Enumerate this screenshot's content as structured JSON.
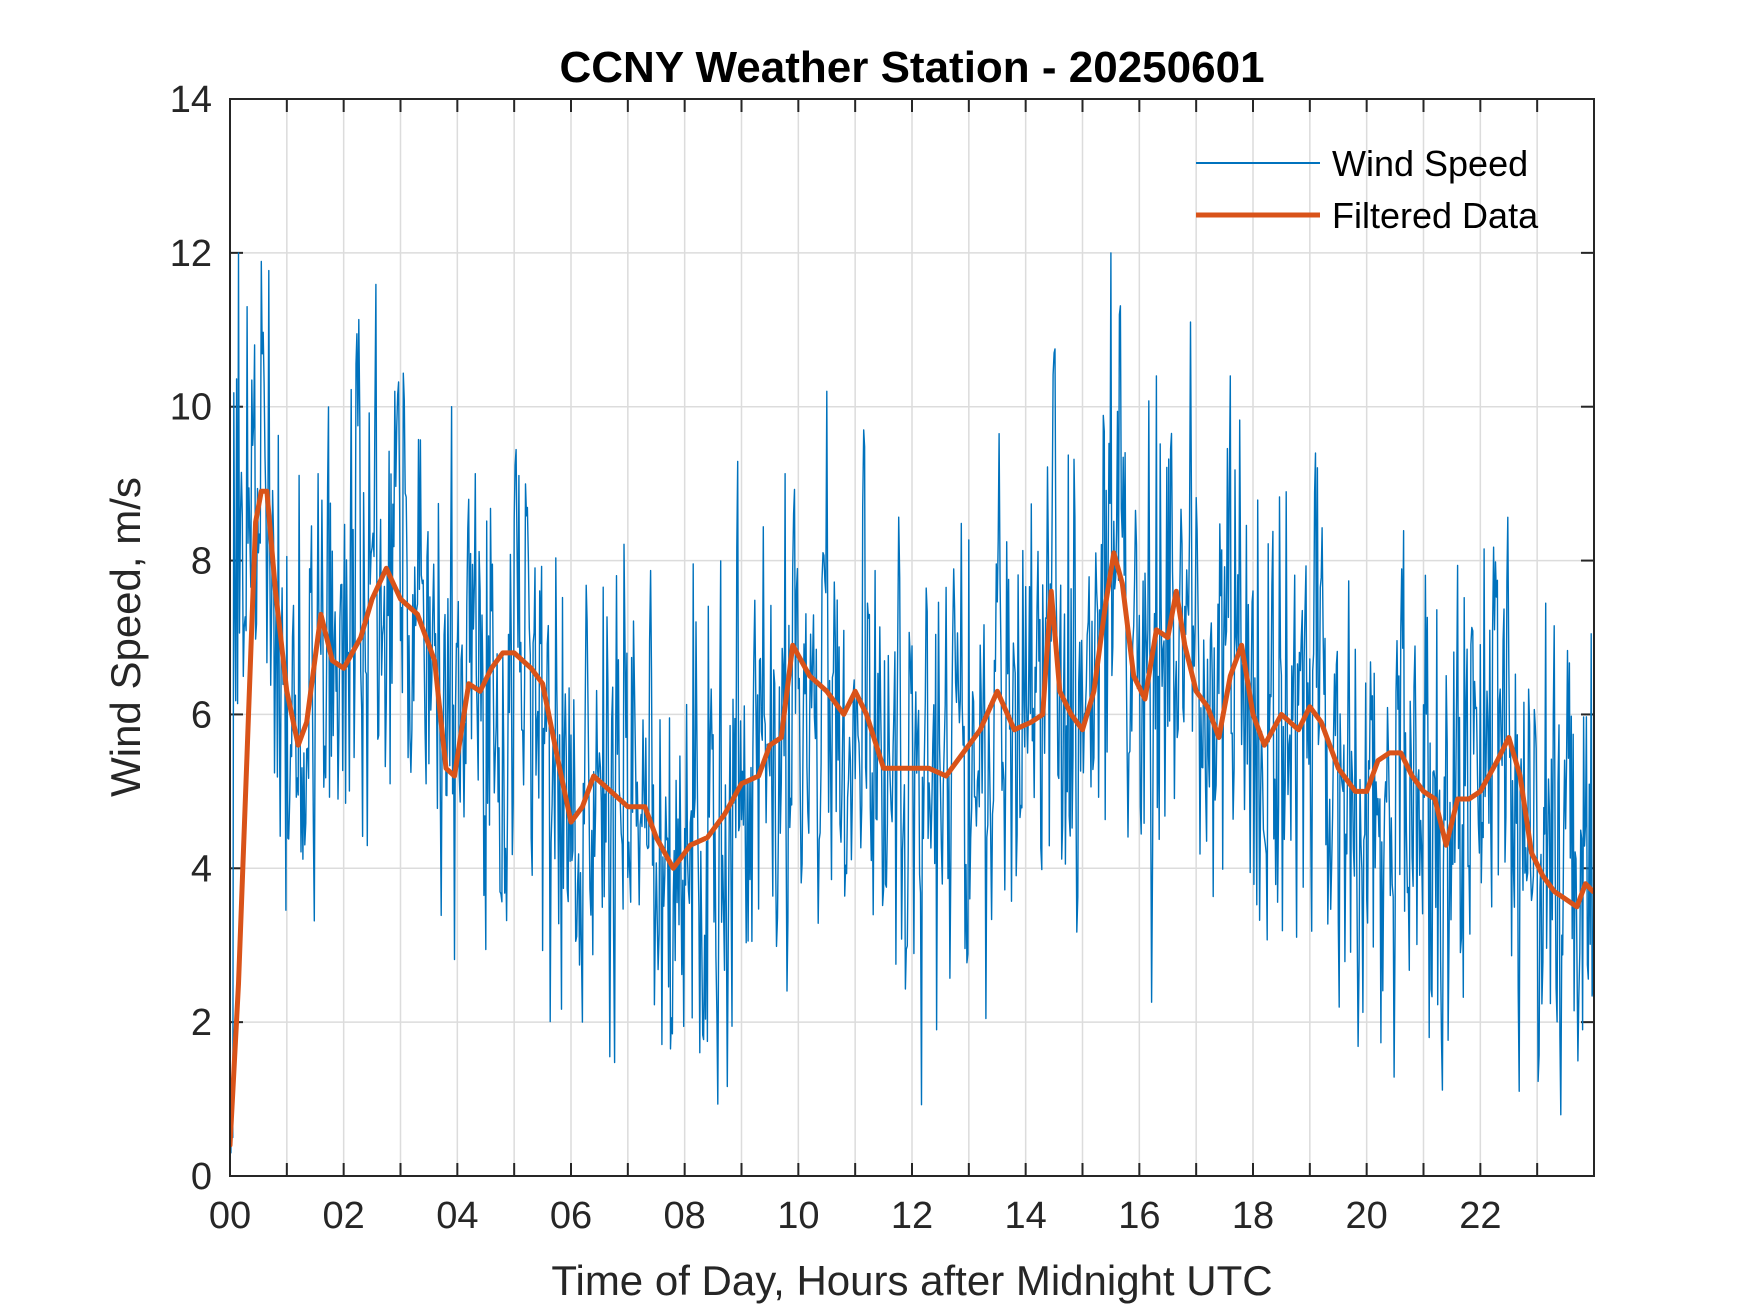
{
  "chart_data": {
    "type": "line",
    "title": "CCNY Weather Station - 20250601",
    "xlabel": "Time of Day, Hours after Midnight UTC",
    "ylabel": "Wind Speed, m/s",
    "xlim": [
      0,
      24
    ],
    "ylim": [
      0,
      14
    ],
    "x_ticks": [
      0,
      2,
      4,
      6,
      8,
      10,
      12,
      14,
      16,
      18,
      20,
      22
    ],
    "x_tick_labels": [
      "00",
      "02",
      "04",
      "06",
      "08",
      "10",
      "12",
      "14",
      "16",
      "18",
      "20",
      "22"
    ],
    "x_grid_step": 1,
    "y_ticks": [
      0,
      2,
      4,
      6,
      8,
      10,
      12,
      14
    ],
    "y_tick_labels": [
      "0",
      "2",
      "4",
      "6",
      "8",
      "10",
      "12",
      "14"
    ],
    "grid": true,
    "legend_position": "top-right",
    "series": [
      {
        "name": "Wind Speed",
        "color": "#0072BD",
        "style": "thin",
        "seed": 20250601,
        "noise_amplitude": 1.5,
        "points_per_hour": 60,
        "peaks": [
          [
            0.15,
            12.0
          ],
          [
            0.3,
            11.3
          ],
          [
            2.9,
            10.2
          ],
          [
            3.9,
            10.0
          ],
          [
            14.5,
            10.7
          ],
          [
            15.5,
            12.0
          ],
          [
            16.3,
            10.4
          ],
          [
            16.9,
            11.1
          ],
          [
            17.6,
            10.4
          ]
        ],
        "troughs": [
          [
            0.05,
            0.5
          ],
          [
            6.2,
            2.0
          ],
          [
            21.1,
            1.8
          ],
          [
            23.8,
            1.9
          ]
        ]
      },
      {
        "name": "Filtered Data",
        "color": "#D95319",
        "style": "thick",
        "x": [
          0.0,
          0.15,
          0.3,
          0.45,
          0.55,
          0.65,
          0.8,
          1.0,
          1.2,
          1.35,
          1.6,
          1.8,
          2.0,
          2.3,
          2.5,
          2.75,
          3.0,
          3.3,
          3.6,
          3.8,
          3.95,
          4.2,
          4.4,
          4.6,
          4.8,
          5.0,
          5.3,
          5.5,
          5.8,
          6.0,
          6.2,
          6.4,
          6.7,
          7.0,
          7.3,
          7.5,
          7.8,
          8.1,
          8.4,
          8.7,
          9.0,
          9.3,
          9.5,
          9.7,
          9.9,
          10.2,
          10.5,
          10.8,
          11.0,
          11.2,
          11.5,
          11.8,
          12.0,
          12.3,
          12.6,
          12.9,
          13.2,
          13.5,
          13.8,
          14.1,
          14.3,
          14.45,
          14.6,
          14.8,
          15.0,
          15.2,
          15.4,
          15.55,
          15.7,
          15.9,
          16.1,
          16.3,
          16.5,
          16.65,
          16.8,
          17.0,
          17.2,
          17.4,
          17.6,
          17.8,
          18.0,
          18.2,
          18.5,
          18.8,
          19.0,
          19.2,
          19.5,
          19.8,
          20.0,
          20.2,
          20.4,
          20.6,
          20.8,
          21.0,
          21.2,
          21.4,
          21.6,
          21.8,
          22.0,
          22.3,
          22.5,
          22.7,
          22.9,
          23.1,
          23.3,
          23.5,
          23.7,
          23.85,
          23.98
        ],
        "values": [
          0.4,
          2.5,
          5.5,
          8.5,
          8.9,
          8.9,
          7.6,
          6.3,
          5.6,
          5.9,
          7.3,
          6.7,
          6.6,
          7.0,
          7.5,
          7.9,
          7.5,
          7.3,
          6.7,
          5.3,
          5.2,
          6.4,
          6.3,
          6.6,
          6.8,
          6.8,
          6.6,
          6.4,
          5.3,
          4.6,
          4.8,
          5.2,
          5.0,
          4.8,
          4.8,
          4.4,
          4.0,
          4.3,
          4.4,
          4.7,
          5.1,
          5.2,
          5.6,
          5.7,
          6.9,
          6.5,
          6.3,
          6.0,
          6.3,
          6.0,
          5.3,
          5.3,
          5.3,
          5.3,
          5.2,
          5.5,
          5.8,
          6.3,
          5.8,
          5.9,
          6.0,
          7.6,
          6.3,
          6.0,
          5.8,
          6.3,
          7.4,
          8.1,
          7.7,
          6.5,
          6.2,
          7.1,
          7.0,
          7.6,
          6.9,
          6.3,
          6.1,
          5.7,
          6.5,
          6.9,
          6.0,
          5.6,
          6.0,
          5.8,
          6.1,
          5.9,
          5.3,
          5.0,
          5.0,
          5.4,
          5.5,
          5.5,
          5.2,
          5.0,
          4.9,
          4.3,
          4.9,
          4.9,
          5.0,
          5.4,
          5.7,
          5.2,
          4.2,
          3.9,
          3.7,
          3.6,
          3.5,
          3.8,
          3.7
        ]
      }
    ]
  }
}
